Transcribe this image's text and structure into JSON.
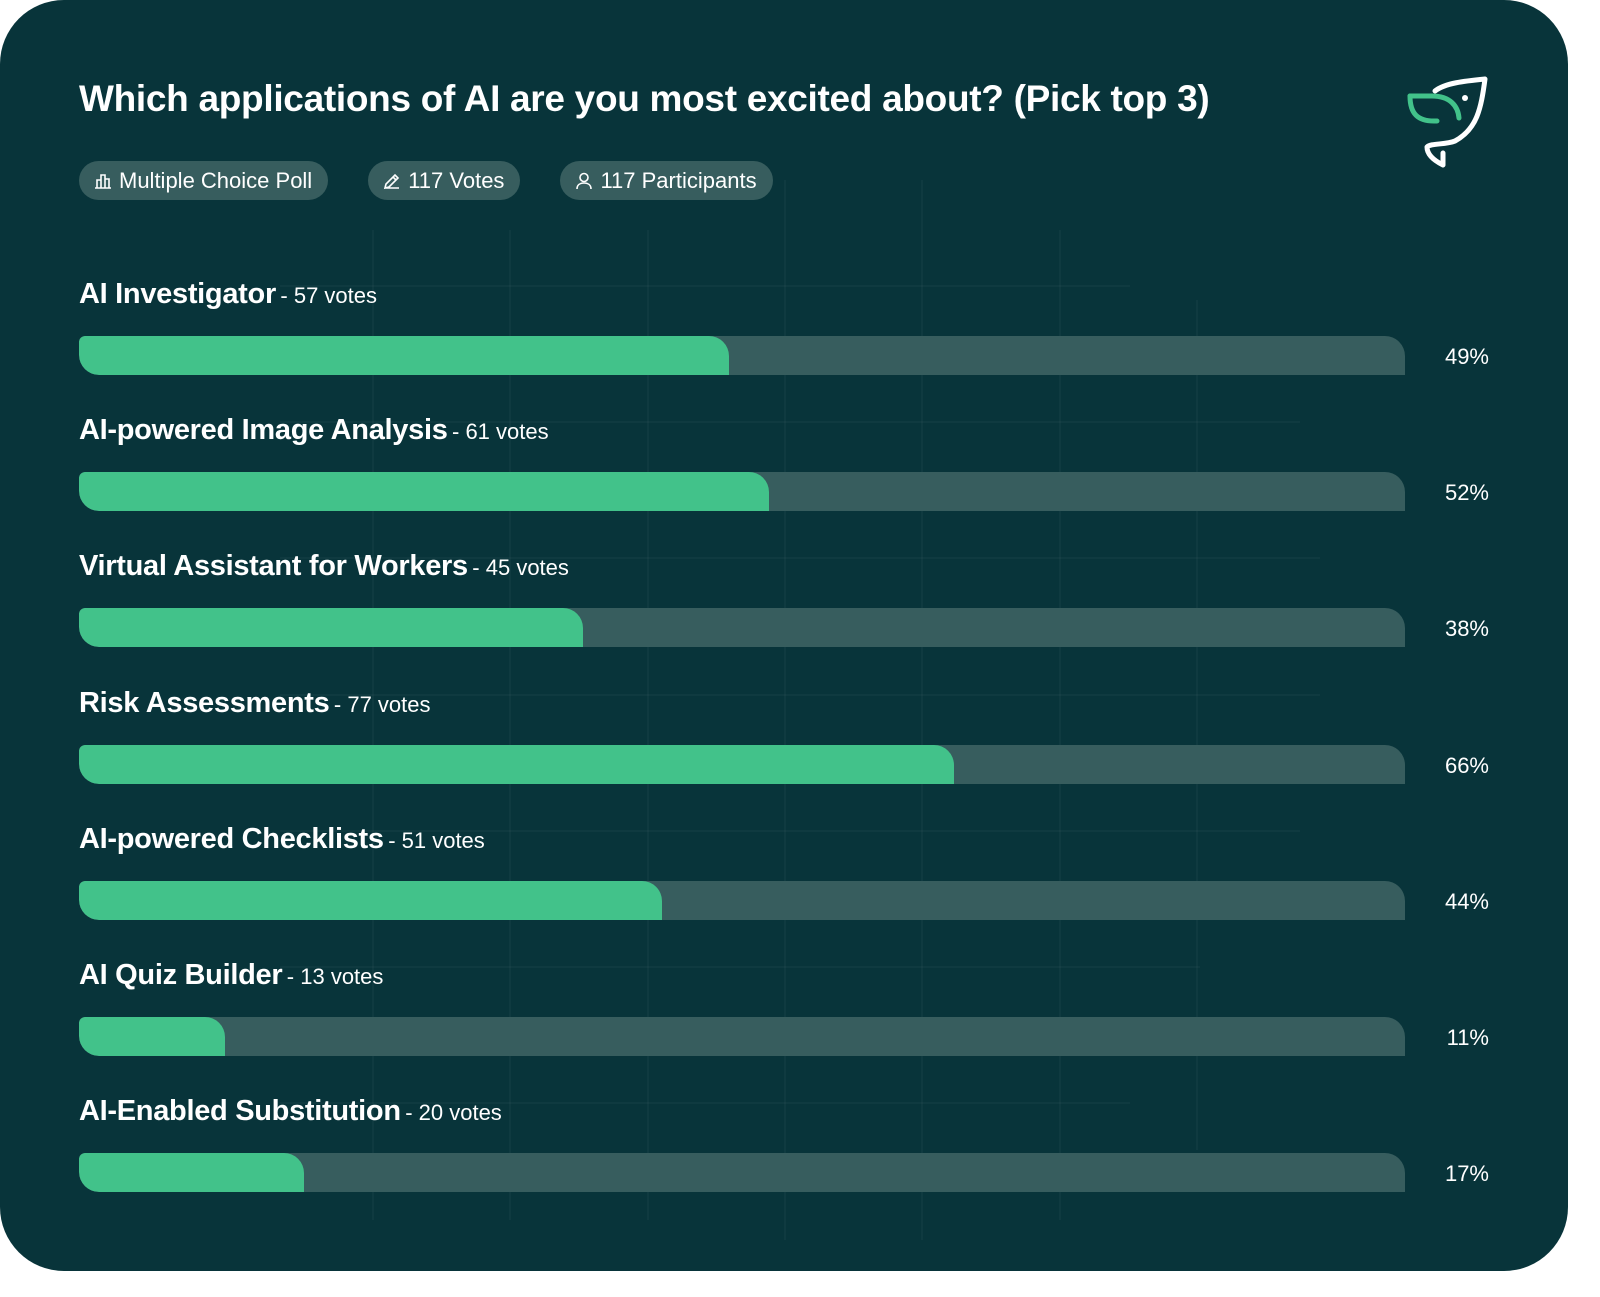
{
  "title": "Which applications of AI are you most excited about? (Pick top 3)",
  "badges": [
    {
      "icon": "bar-chart-icon",
      "label": "Multiple Choice Poll"
    },
    {
      "icon": "pencil-icon",
      "label": "117 Votes"
    },
    {
      "icon": "person-icon",
      "label": "117 Participants"
    }
  ],
  "colors": {
    "background": "#08343a",
    "bar_fill": "#42c28a",
    "bar_track": "#375d5e"
  },
  "chart_data": {
    "type": "bar",
    "orientation": "horizontal",
    "categories": [
      "AI Investigator",
      "AI-powered Image Analysis",
      "Virtual Assistant for Workers",
      "Risk Assessments",
      "AI-powered Checklists",
      "AI Quiz Builder",
      "AI-Enabled Substitution"
    ],
    "vote_labels": [
      "- 57 votes",
      "- 61 votes",
      "- 45 votes",
      "- 77 votes",
      "- 51 votes",
      "- 13 votes",
      "- 20 votes"
    ],
    "votes": [
      57,
      61,
      45,
      77,
      51,
      13,
      20
    ],
    "values": [
      49,
      52,
      38,
      66,
      44,
      11,
      17
    ],
    "percent_labels": [
      "49%",
      "52%",
      "38%",
      "66%",
      "44%",
      "11%",
      "17%"
    ],
    "xlim": [
      0,
      100
    ]
  }
}
